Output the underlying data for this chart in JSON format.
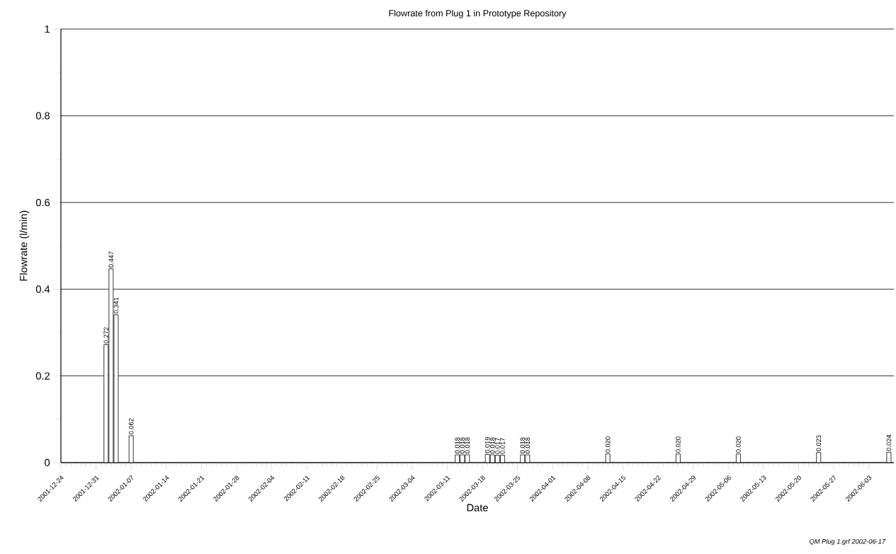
{
  "chart_data": {
    "type": "bar",
    "title": "Flowrate from Plug 1 in Prototype Repository",
    "xlabel": "Date",
    "ylabel": "Flowrate (l/min)",
    "x": [
      "2002-01-02",
      "2002-01-03",
      "2002-01-04",
      "2002-01-07",
      "2002-03-13",
      "2002-03-14",
      "2002-03-15",
      "2002-03-19",
      "2002-03-20",
      "2002-03-21",
      "2002-03-22",
      "2002-03-26",
      "2002-03-27",
      "2002-04-12",
      "2002-04-26",
      "2002-05-08",
      "2002-05-24",
      "2002-06-07"
    ],
    "values": [
      0.272,
      0.447,
      0.341,
      0.062,
      0.018,
      0.018,
      0.018,
      0.019,
      0.018,
      0.017,
      0.017,
      0.018,
      0.018,
      0.02,
      0.02,
      0.02,
      0.023,
      0.024
    ],
    "value_labels": [
      "0.272",
      "0.447",
      "0.341",
      "0.062",
      "0.018",
      "0.018",
      "0.018",
      "0.019",
      "0.018",
      "0.017",
      "0.017",
      "0.018",
      "0.018",
      "0.020",
      "0.020",
      "0.020",
      "0.023",
      "0.024"
    ],
    "color": "#000000",
    "xlim": [
      "2001-12-24",
      "2002-06-08"
    ],
    "xticks": [
      "2001-12-24",
      "2001-12-31",
      "2002-01-07",
      "2002-01-14",
      "2002-01-21",
      "2002-01-28",
      "2002-02-04",
      "2002-02-11",
      "2002-02-18",
      "2002-02-25",
      "2002-03-04",
      "2002-03-11",
      "2002-03-18",
      "2002-03-25",
      "2002-04-01",
      "2002-04-08",
      "2002-04-15",
      "2002-04-22",
      "2002-04-29",
      "2002-05-06",
      "2002-05-13",
      "2002-05-20",
      "2002-05-27",
      "2002-06-03"
    ],
    "ylim": [
      0,
      1
    ],
    "yticks": [
      0,
      0.2,
      0.4,
      0.6,
      0.8,
      1
    ],
    "grid": "y",
    "annotations": [
      "*QM Plug 1.grf    2002-06-17*"
    ]
  }
}
